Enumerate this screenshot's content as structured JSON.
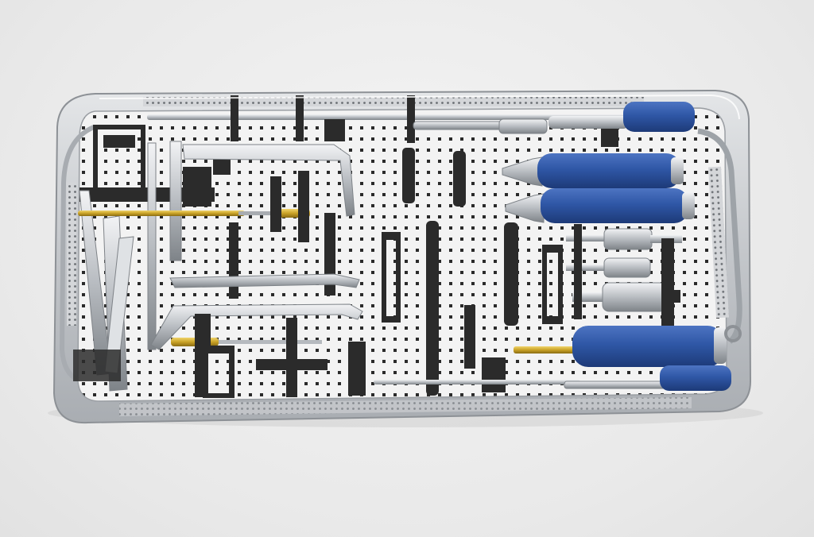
{
  "scene": {
    "subject": "sterilization-tray",
    "colors": {
      "background": "#ececec",
      "steel": "#c9ccd0",
      "steel_dark": "#8e9399",
      "handle_blue": "#2f57a6",
      "handle_blue_dark": "#1f3f80",
      "gold": "#c9a227",
      "clip_black": "#2b2b2b"
    }
  }
}
